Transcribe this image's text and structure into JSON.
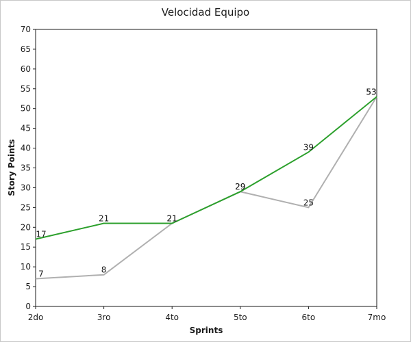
{
  "chart_data": {
    "type": "line",
    "title": "Velocidad Equipo",
    "xlabel": "Sprints",
    "ylabel": "Story Points",
    "categories": [
      "2do",
      "3ro",
      "4to",
      "5to",
      "6to",
      "7mo"
    ],
    "ylim": [
      0,
      70
    ],
    "yticks": [
      0,
      5,
      10,
      15,
      20,
      25,
      30,
      35,
      40,
      45,
      50,
      55,
      60,
      65,
      70
    ],
    "grid": false,
    "legend": "none",
    "series": [
      {
        "values": [
          17,
          21,
          21,
          29,
          39,
          53
        ],
        "color": "#2ca02c"
      },
      {
        "values": [
          7,
          8,
          21,
          29,
          25,
          53
        ],
        "color": "#b0b0b0"
      }
    ]
  }
}
